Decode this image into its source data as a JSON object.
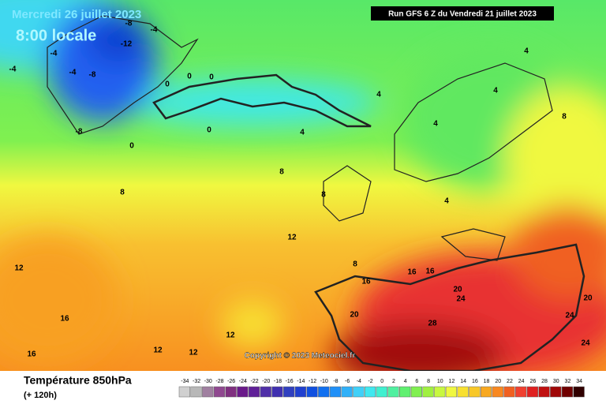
{
  "header": {
    "date": "Mercredi 26 juillet 2023",
    "time": "8:00 locale",
    "run": "Run GFS 6 Z du Vendredi 21 juillet 2023"
  },
  "copyright": "Copyright © 2023 Meteociel.fr",
  "legend": {
    "title": "Température 850hPa",
    "lead": "(+ 120h)",
    "scale": [
      -34,
      -32,
      -30,
      -28,
      -26,
      -24,
      -22,
      -20,
      -18,
      -16,
      -14,
      -12,
      -10,
      -8,
      -6,
      -4,
      -2,
      0,
      2,
      4,
      6,
      8,
      10,
      12,
      14,
      16,
      18,
      20,
      22,
      24,
      26,
      28,
      30,
      32,
      34
    ],
    "colors": [
      "#d0d0d0",
      "#b8b8b8",
      "#a080a0",
      "#904890",
      "#803080",
      "#6a1a8a",
      "#602098",
      "#5030a8",
      "#4030b0",
      "#3040c0",
      "#2040d0",
      "#1050e0",
      "#1070f0",
      "#2090f8",
      "#30b0f8",
      "#40d0f8",
      "#40e8f0",
      "#40f0d0",
      "#50f0a0",
      "#60f070",
      "#80f050",
      "#a0f040",
      "#c8f840",
      "#f0f840",
      "#f8e030",
      "#f8c828",
      "#f8a820",
      "#f88820",
      "#f06020",
      "#f04030",
      "#e02020",
      "#c01010",
      "#a00808",
      "#700000",
      "#300000"
    ]
  },
  "map": {
    "contour_labels": [
      -8,
      -4,
      -12,
      -4,
      -4,
      -8,
      -4,
      -8,
      0,
      0,
      0,
      0,
      0,
      4,
      4,
      4,
      4,
      8,
      8,
      8,
      8,
      12,
      12,
      16,
      16,
      16,
      16,
      16,
      20,
      24,
      20,
      28,
      20,
      24,
      24,
      12,
      12,
      12,
      8,
      4,
      4
    ]
  }
}
